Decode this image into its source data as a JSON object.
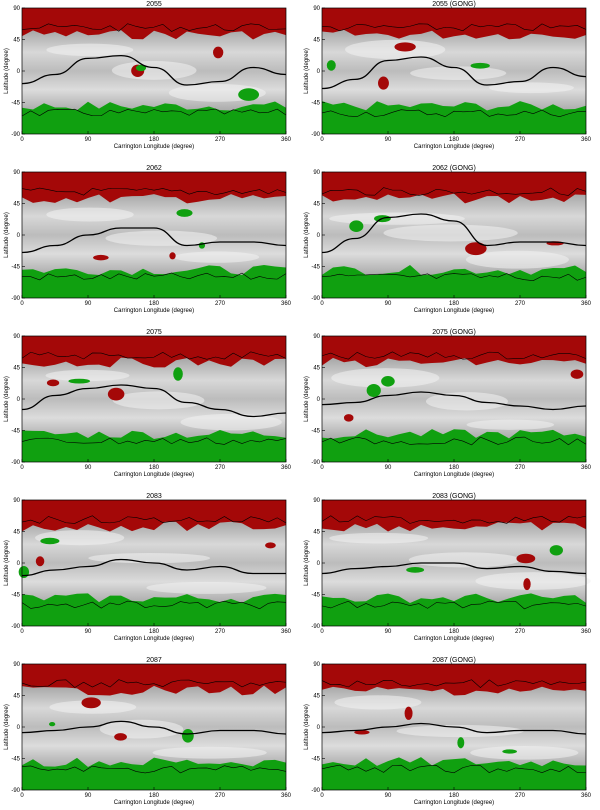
{
  "figure": {
    "xlabel": "Carrington Longitude (degree)",
    "ylabel": "Latitude (degree)",
    "xticks": [
      0,
      90,
      180,
      270,
      360
    ],
    "yticks": [
      90,
      45,
      0,
      -45,
      -90
    ]
  },
  "colors": {
    "positive_region": "#a40808",
    "negative_region": "#10a010",
    "background_dark": "#8a8a8a",
    "background_light": "#f2f2f2",
    "contour": "#000000"
  },
  "chart_data": [
    {
      "type": "heatmap",
      "title": "2055",
      "xlim": [
        0,
        360
      ],
      "ylim": [
        -90,
        90
      ],
      "neutral_line": {
        "x": [
          0,
          45,
          90,
          135,
          180,
          225,
          270,
          315,
          360
        ],
        "y": [
          -18,
          -5,
          18,
          22,
          5,
          -20,
          -15,
          5,
          -5
        ]
      }
    },
    {
      "type": "heatmap",
      "title": "2055 (GONG)",
      "xlim": [
        0,
        360
      ],
      "ylim": [
        -90,
        90
      ],
      "neutral_line": {
        "x": [
          0,
          45,
          90,
          135,
          180,
          225,
          270,
          315,
          360
        ],
        "y": [
          -25,
          -12,
          15,
          20,
          5,
          -20,
          -15,
          5,
          -8
        ]
      }
    },
    {
      "type": "heatmap",
      "title": "2062",
      "xlim": [
        0,
        360
      ],
      "ylim": [
        -90,
        90
      ],
      "neutral_line": {
        "x": [
          0,
          45,
          90,
          135,
          180,
          225,
          270,
          315,
          360
        ],
        "y": [
          -25,
          -15,
          0,
          10,
          10,
          -15,
          -10,
          -10,
          -15
        ]
      }
    },
    {
      "type": "heatmap",
      "title": "2062 (GONG)",
      "xlim": [
        0,
        360
      ],
      "ylim": [
        -90,
        90
      ],
      "neutral_line": {
        "x": [
          0,
          45,
          90,
          135,
          180,
          225,
          270,
          315,
          360
        ],
        "y": [
          -25,
          -5,
          25,
          30,
          20,
          -15,
          -10,
          -10,
          -15
        ]
      }
    },
    {
      "type": "heatmap",
      "title": "2075",
      "xlim": [
        0,
        360
      ],
      "ylim": [
        -90,
        90
      ],
      "neutral_line": {
        "x": [
          0,
          45,
          90,
          135,
          180,
          225,
          270,
          315,
          360
        ],
        "y": [
          -15,
          5,
          15,
          20,
          15,
          -5,
          -15,
          -25,
          -20
        ]
      }
    },
    {
      "type": "heatmap",
      "title": "2075 (GONG)",
      "xlim": [
        0,
        360
      ],
      "ylim": [
        -90,
        90
      ],
      "neutral_line": {
        "x": [
          0,
          45,
          90,
          135,
          180,
          225,
          270,
          315,
          360
        ],
        "y": [
          -8,
          -5,
          5,
          10,
          5,
          -5,
          -10,
          -15,
          -10
        ]
      }
    },
    {
      "type": "heatmap",
      "title": "2083",
      "xlim": [
        0,
        360
      ],
      "ylim": [
        -90,
        90
      ],
      "neutral_line": {
        "x": [
          0,
          45,
          90,
          135,
          180,
          225,
          270,
          315,
          360
        ],
        "y": [
          -18,
          -10,
          -5,
          5,
          0,
          -10,
          -5,
          -15,
          -15
        ]
      }
    },
    {
      "type": "heatmap",
      "title": "2083 (GONG)",
      "xlim": [
        0,
        360
      ],
      "ylim": [
        -90,
        90
      ],
      "neutral_line": {
        "x": [
          0,
          45,
          90,
          135,
          180,
          225,
          270,
          315,
          360
        ],
        "y": [
          -15,
          -8,
          -5,
          0,
          0,
          -8,
          -5,
          -12,
          -15
        ]
      }
    },
    {
      "type": "heatmap",
      "title": "2087",
      "xlim": [
        0,
        360
      ],
      "ylim": [
        -90,
        90
      ],
      "neutral_line": {
        "x": [
          0,
          45,
          90,
          135,
          180,
          225,
          270,
          315,
          360
        ],
        "y": [
          -8,
          -5,
          0,
          8,
          0,
          -10,
          -5,
          -5,
          -10
        ]
      }
    },
    {
      "type": "heatmap",
      "title": "2087 (GONG)",
      "xlim": [
        0,
        360
      ],
      "ylim": [
        -90,
        90
      ],
      "neutral_line": {
        "x": [
          0,
          45,
          90,
          135,
          180,
          225,
          270,
          315,
          360
        ],
        "y": [
          -8,
          -5,
          0,
          5,
          0,
          -8,
          -5,
          -5,
          -10
        ]
      }
    }
  ]
}
